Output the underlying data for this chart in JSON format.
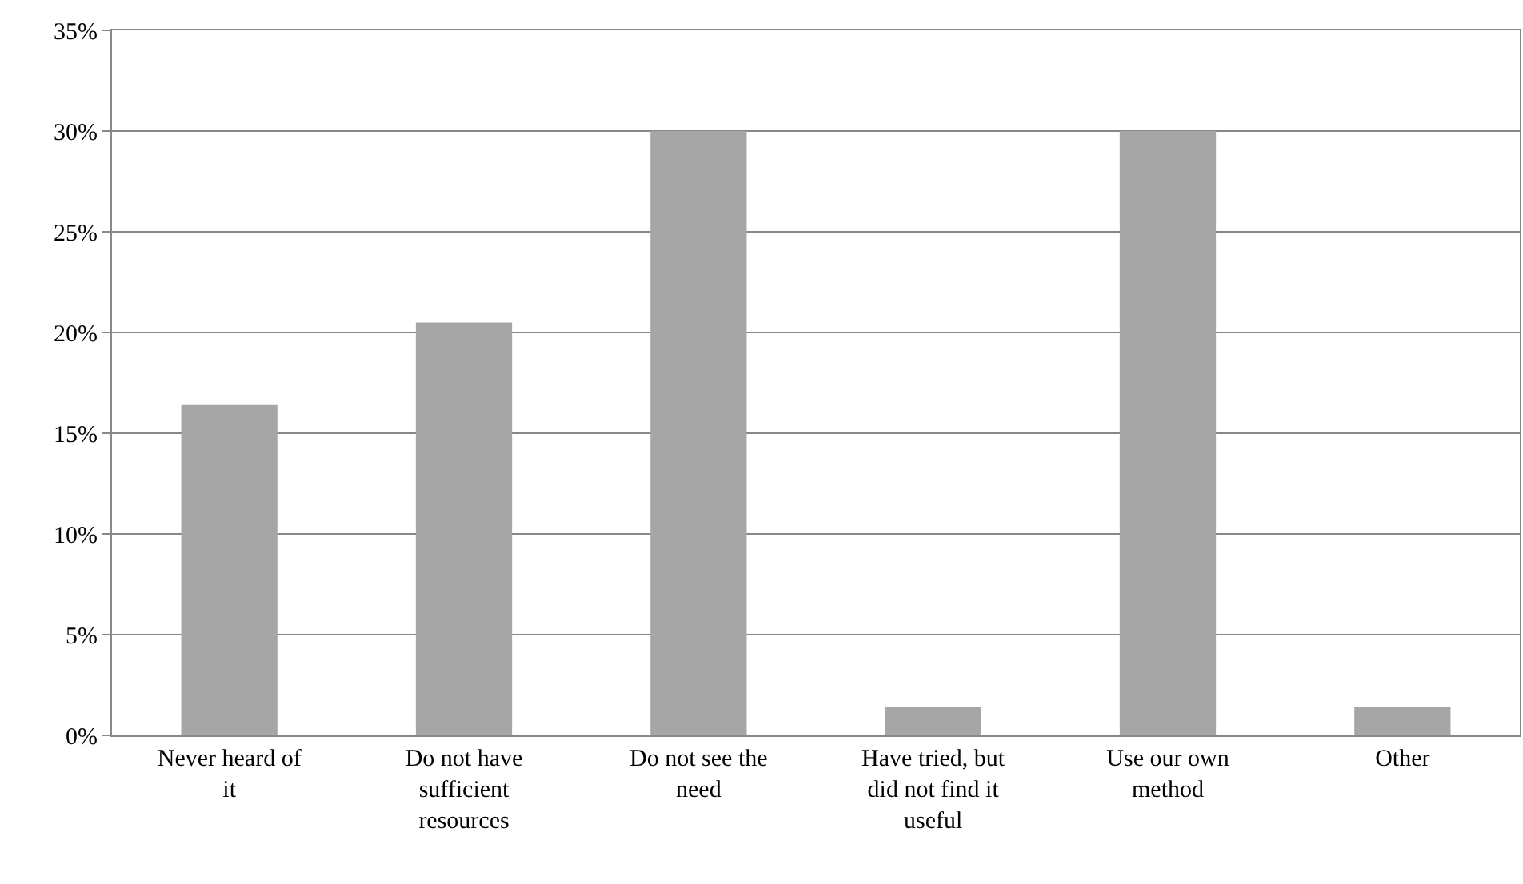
{
  "chart_data": {
    "type": "bar",
    "categories": [
      "Never heard of it",
      "Do not have sufficient resources",
      "Do not see the need",
      "Have tried, but did not find it useful",
      "Use our own method",
      "Other"
    ],
    "values": [
      16.4,
      20.5,
      30,
      1.4,
      30,
      1.4
    ],
    "color": "#a6a6a6",
    "ylim": [
      0,
      35
    ],
    "yticks": [
      {
        "value": 0,
        "label": "0%"
      },
      {
        "value": 5,
        "label": "5%"
      },
      {
        "value": 10,
        "label": "10%"
      },
      {
        "value": 15,
        "label": "15%"
      },
      {
        "value": 20,
        "label": "20%"
      },
      {
        "value": 25,
        "label": "25%"
      },
      {
        "value": 30,
        "label": "30%"
      },
      {
        "value": 35,
        "label": "35%"
      }
    ],
    "grid": "y"
  }
}
